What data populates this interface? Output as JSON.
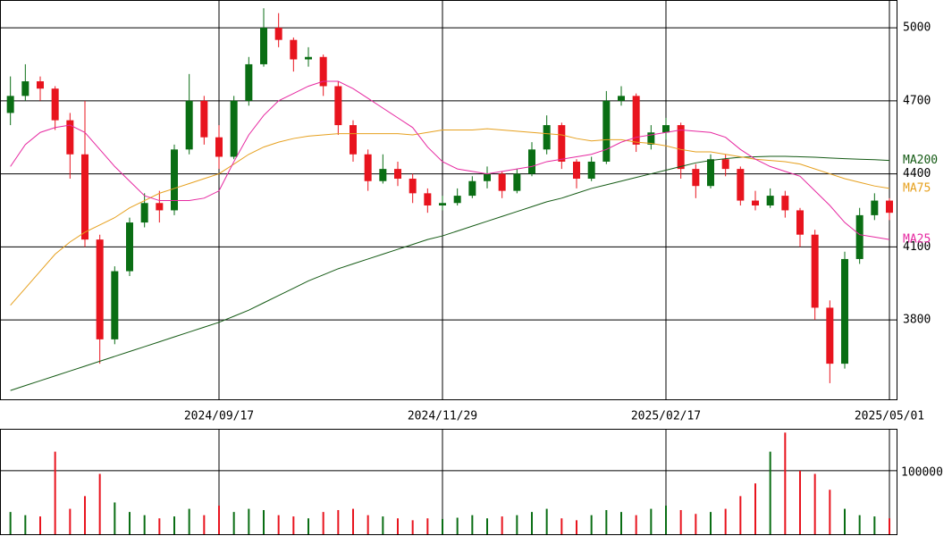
{
  "chart_data": {
    "type": "candlestick",
    "categories": [
      null,
      null,
      null,
      null,
      null,
      null,
      null,
      null,
      null,
      null,
      null,
      null,
      null,
      null,
      "2024/09/17",
      null,
      null,
      null,
      null,
      null,
      null,
      null,
      null,
      null,
      null,
      null,
      null,
      null,
      null,
      "2024/11/29",
      null,
      null,
      null,
      null,
      null,
      null,
      null,
      null,
      null,
      null,
      null,
      null,
      null,
      null,
      "2025/02/17",
      null,
      null,
      null,
      null,
      null,
      null,
      null,
      null,
      null,
      null,
      null,
      null,
      null,
      null,
      "2025/05/01"
    ],
    "open": [
      4650,
      4720,
      4780,
      4750,
      4620,
      4480,
      4130,
      3720,
      4000,
      4200,
      4280,
      4250,
      4500,
      4700,
      4550,
      4470,
      4700,
      4850,
      5000,
      4950,
      4870,
      4880,
      4760,
      4600,
      4480,
      4370,
      4420,
      4380,
      4320,
      4270,
      4280,
      4310,
      4370,
      4400,
      4330,
      4400,
      4500,
      4600,
      4450,
      4380,
      4450,
      4700,
      4720,
      4520,
      4570,
      4600,
      4420,
      4350,
      4460,
      4420,
      4290,
      4270,
      4310,
      4250,
      4150,
      3850,
      3620,
      4050,
      4230,
      4290
    ],
    "high": [
      4800,
      4850,
      4800,
      4760,
      4650,
      4700,
      4150,
      4020,
      4220,
      4320,
      4330,
      4520,
      4810,
      4720,
      4600,
      4720,
      4880,
      5080,
      5060,
      4960,
      4920,
      4890,
      4780,
      4620,
      4500,
      4480,
      4450,
      4400,
      4340,
      4310,
      4340,
      4390,
      4430,
      4410,
      4420,
      4530,
      4640,
      4610,
      4460,
      4470,
      4740,
      4760,
      4730,
      4600,
      4630,
      4610,
      4440,
      4480,
      4480,
      4430,
      4330,
      4340,
      4330,
      4260,
      4170,
      3880,
      4080,
      4260,
      4320,
      4300
    ],
    "low": [
      4600,
      4700,
      4700,
      4580,
      4380,
      4100,
      3620,
      3700,
      3980,
      4180,
      4200,
      4230,
      4480,
      4520,
      4420,
      4460,
      4680,
      4840,
      4920,
      4820,
      4840,
      4720,
      4560,
      4450,
      4330,
      4360,
      4350,
      4280,
      4240,
      4250,
      4270,
      4300,
      4340,
      4300,
      4320,
      4390,
      4480,
      4420,
      4340,
      4370,
      4440,
      4680,
      4490,
      4500,
      4540,
      4380,
      4300,
      4340,
      4390,
      4270,
      4250,
      4260,
      4220,
      4100,
      3800,
      3540,
      3600,
      4030,
      4210,
      4210
    ],
    "close": [
      4720,
      4780,
      4750,
      4620,
      4480,
      4130,
      3720,
      4000,
      4200,
      4280,
      4250,
      4500,
      4700,
      4550,
      4470,
      4700,
      4850,
      5000,
      4950,
      4870,
      4880,
      4760,
      4600,
      4480,
      4370,
      4420,
      4380,
      4320,
      4270,
      4280,
      4310,
      4370,
      4400,
      4330,
      4400,
      4500,
      4600,
      4450,
      4380,
      4450,
      4700,
      4720,
      4520,
      4570,
      4600,
      4420,
      4350,
      4460,
      4420,
      4290,
      4270,
      4310,
      4250,
      4150,
      3850,
      3620,
      4050,
      4230,
      4290,
      4240
    ],
    "up_color": "#0a6e14",
    "down_color": "#e8141e",
    "series": [
      {
        "name": "MA200",
        "color": "#145a14",
        "values": [
          3510,
          3530,
          3550,
          3570,
          3590,
          3610,
          3630,
          3650,
          3670,
          3690,
          3710,
          3730,
          3750,
          3770,
          3790,
          3815,
          3840,
          3870,
          3900,
          3930,
          3960,
          3985,
          4010,
          4030,
          4050,
          4070,
          4090,
          4110,
          4130,
          4145,
          4165,
          4185,
          4205,
          4225,
          4245,
          4265,
          4285,
          4300,
          4320,
          4340,
          4355,
          4370,
          4385,
          4400,
          4415,
          4430,
          4445,
          4455,
          4462,
          4468,
          4470,
          4472,
          4472,
          4470,
          4468,
          4465,
          4462,
          4460,
          4458,
          4455
        ]
      },
      {
        "name": "MA75",
        "color": "#e6a01e",
        "values": [
          3860,
          3930,
          4000,
          4070,
          4120,
          4160,
          4190,
          4220,
          4260,
          4290,
          4320,
          4340,
          4360,
          4380,
          4400,
          4440,
          4480,
          4510,
          4530,
          4545,
          4555,
          4560,
          4565,
          4565,
          4565,
          4565,
          4565,
          4560,
          4570,
          4580,
          4580,
          4580,
          4585,
          4580,
          4575,
          4570,
          4565,
          4560,
          4545,
          4535,
          4540,
          4540,
          4530,
          4525,
          4515,
          4500,
          4490,
          4490,
          4480,
          4470,
          4460,
          4455,
          4450,
          4440,
          4420,
          4400,
          4380,
          4365,
          4350,
          4340
        ]
      },
      {
        "name": "MA25",
        "color": "#e628a0",
        "values": [
          4430,
          4520,
          4570,
          4590,
          4600,
          4570,
          4500,
          4430,
          4370,
          4310,
          4290,
          4290,
          4290,
          4300,
          4330,
          4450,
          4560,
          4640,
          4700,
          4730,
          4760,
          4780,
          4780,
          4750,
          4710,
          4670,
          4630,
          4590,
          4510,
          4450,
          4420,
          4410,
          4400,
          4410,
          4420,
          4430,
          4450,
          4460,
          4470,
          4480,
          4500,
          4530,
          4550,
          4560,
          4570,
          4580,
          4575,
          4570,
          4550,
          4500,
          4460,
          4430,
          4410,
          4390,
          4330,
          4270,
          4200,
          4150,
          4140,
          4130
        ]
      }
    ],
    "ylim": [
      3470,
      5114
    ],
    "yticks": [
      3800,
      4100,
      4400,
      4700,
      5000
    ],
    "grid": true,
    "volume": {
      "values": [
        35000,
        30000,
        28000,
        130000,
        40000,
        60000,
        95000,
        50000,
        35000,
        30000,
        25000,
        28000,
        40000,
        30000,
        45000,
        35000,
        40000,
        38000,
        30000,
        28000,
        25000,
        35000,
        38000,
        40000,
        30000,
        28000,
        25000,
        22000,
        25000,
        24000,
        26000,
        30000,
        25000,
        28000,
        30000,
        35000,
        40000,
        25000,
        22000,
        30000,
        38000,
        35000,
        30000,
        40000,
        45000,
        38000,
        32000,
        35000,
        40000,
        60000,
        80000,
        130000,
        160000,
        100000,
        95000,
        70000,
        40000,
        30000,
        28000,
        25000
      ],
      "ylim": [
        0,
        166000
      ],
      "yticks": [
        100000
      ]
    }
  }
}
